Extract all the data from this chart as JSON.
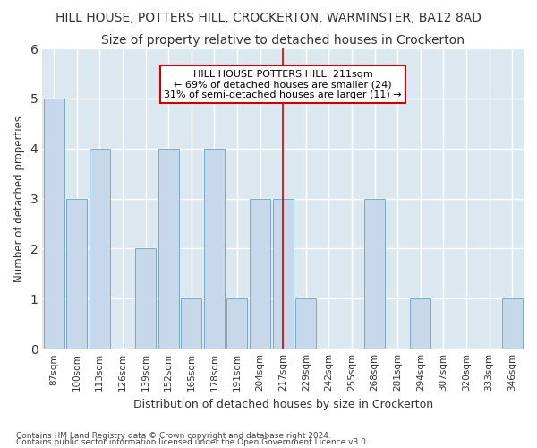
{
  "title": "HILL HOUSE, POTTERS HILL, CROCKERTON, WARMINSTER, BA12 8AD",
  "subtitle": "Size of property relative to detached houses in Crockerton",
  "xlabel": "Distribution of detached houses by size in Crockerton",
  "ylabel": "Number of detached properties",
  "categories": [
    "87sqm",
    "100sqm",
    "113sqm",
    "126sqm",
    "139sqm",
    "152sqm",
    "165sqm",
    "178sqm",
    "191sqm",
    "204sqm",
    "217sqm",
    "229sqm",
    "242sqm",
    "255sqm",
    "268sqm",
    "281sqm",
    "294sqm",
    "307sqm",
    "320sqm",
    "333sqm",
    "346sqm"
  ],
  "values": [
    5,
    3,
    4,
    0,
    2,
    4,
    1,
    4,
    1,
    3,
    3,
    1,
    0,
    0,
    3,
    0,
    1,
    0,
    0,
    0,
    1
  ],
  "bar_color": "#c8d8eb",
  "bar_edge_color": "#7aaac8",
  "vline_x": 10,
  "vline_color": "#cc0000",
  "ylim": [
    0,
    6
  ],
  "yticks": [
    0,
    1,
    2,
    3,
    4,
    5,
    6
  ],
  "annotation_text": "HILL HOUSE POTTERS HILL: 211sqm\n← 69% of detached houses are smaller (24)\n31% of semi-detached houses are larger (11) →",
  "footnote1": "Contains HM Land Registry data © Crown copyright and database right 2024.",
  "footnote2": "Contains public sector information licensed under the Open Government Licence v3.0.",
  "bg_color": "#ffffff",
  "plot_bg_color": "#dce8f0",
  "title_fontsize": 10,
  "subtitle_fontsize": 10,
  "annotation_box_color": "#ffffff",
  "annotation_box_edge": "#cc0000",
  "grid_color": "#ffffff"
}
